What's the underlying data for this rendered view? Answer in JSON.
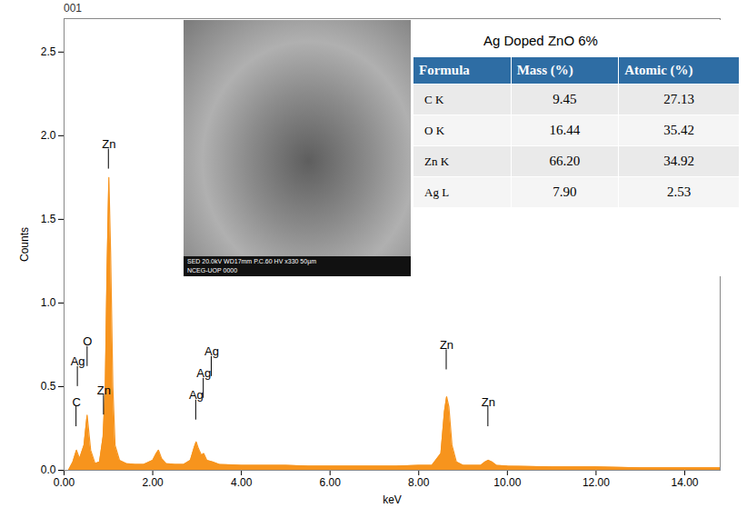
{
  "chart_data": {
    "type": "area",
    "title": "001",
    "x_label": "keV",
    "y_label": "Counts",
    "color": "#f7941d",
    "x": [
      0.1,
      0.2,
      0.28,
      0.35,
      0.45,
      0.52,
      0.6,
      0.7,
      0.8,
      0.88,
      0.93,
      0.97,
      1.01,
      1.05,
      1.1,
      1.15,
      1.25,
      1.4,
      1.6,
      1.8,
      2.0,
      2.08,
      2.13,
      2.2,
      2.3,
      2.5,
      2.7,
      2.85,
      2.94,
      2.98,
      3.03,
      3.1,
      3.15,
      3.22,
      3.35,
      3.5,
      4.0,
      4.5,
      5.0,
      5.5,
      6.0,
      6.5,
      7.0,
      7.5,
      8.0,
      8.3,
      8.5,
      8.58,
      8.63,
      8.68,
      8.75,
      8.85,
      9.0,
      9.4,
      9.5,
      9.57,
      9.65,
      9.75,
      10.0,
      11.0,
      12.0,
      13.0,
      14.0,
      14.8
    ],
    "values": [
      0.0,
      0.05,
      0.12,
      0.07,
      0.15,
      0.33,
      0.12,
      0.04,
      0.05,
      0.2,
      0.5,
      1.2,
      1.75,
      1.3,
      0.5,
      0.15,
      0.06,
      0.04,
      0.035,
      0.035,
      0.06,
      0.1,
      0.12,
      0.07,
      0.04,
      0.035,
      0.035,
      0.06,
      0.14,
      0.17,
      0.13,
      0.09,
      0.1,
      0.06,
      0.05,
      0.035,
      0.03,
      0.03,
      0.03,
      0.025,
      0.025,
      0.025,
      0.025,
      0.025,
      0.03,
      0.03,
      0.1,
      0.35,
      0.44,
      0.38,
      0.15,
      0.05,
      0.03,
      0.03,
      0.05,
      0.06,
      0.05,
      0.03,
      0.025,
      0.02,
      0.02,
      0.015,
      0.015,
      0.015
    ],
    "xlim": [
      0,
      14.8
    ],
    "xticks": [
      {
        "value": 0,
        "label": "0.00"
      },
      {
        "value": 2,
        "label": "2.00"
      },
      {
        "value": 4,
        "label": "4.00"
      },
      {
        "value": 6,
        "label": "6.00"
      },
      {
        "value": 8,
        "label": "8.00"
      },
      {
        "value": 10,
        "label": "10.00"
      },
      {
        "value": 12,
        "label": "12.00"
      },
      {
        "value": 14,
        "label": "14.00"
      }
    ],
    "ylim": [
      0,
      2.7
    ],
    "yticks": [
      {
        "value": 0,
        "label": "0.0"
      },
      {
        "value": 0.5,
        "label": "0.5"
      },
      {
        "value": 1,
        "label": "1.0"
      },
      {
        "value": 1.5,
        "label": "1.5"
      },
      {
        "value": 2,
        "label": "2.0"
      },
      {
        "value": 2.5,
        "label": "2.5"
      }
    ],
    "grid": false,
    "peaks": [
      {
        "label": "C",
        "x": 0.28,
        "y": 0.38
      },
      {
        "label": "Ag",
        "x": 0.31,
        "y": 0.62
      },
      {
        "label": "O",
        "x": 0.53,
        "y": 0.74
      },
      {
        "label": "Zn",
        "x": 0.9,
        "y": 0.45
      },
      {
        "label": "Zn",
        "x": 1.01,
        "y": 1.92
      },
      {
        "label": "Ag",
        "x": 2.98,
        "y": 0.42
      },
      {
        "label": "Ag",
        "x": 3.15,
        "y": 0.55
      },
      {
        "label": "Ag",
        "x": 3.33,
        "y": 0.68
      },
      {
        "label": "Zn",
        "x": 8.63,
        "y": 0.72
      },
      {
        "label": "Zn",
        "x": 9.57,
        "y": 0.38
      }
    ]
  },
  "inset": {
    "caption_lines": [
      "SED 20.0kV   WD17mm   P.C.60   HV   x330   50µm",
      "NCEG-UOP   0000"
    ]
  },
  "table": {
    "title": "Ag Doped ZnO 6%",
    "columns": [
      "Formula",
      "Mass (%)",
      "Atomic (%)"
    ],
    "rows": [
      [
        "C K",
        "9.45",
        "27.13"
      ],
      [
        "O K",
        "16.44",
        "35.42"
      ],
      [
        "Zn K",
        "66.20",
        "34.92"
      ],
      [
        "Ag L",
        "7.90",
        "2.53"
      ]
    ]
  }
}
